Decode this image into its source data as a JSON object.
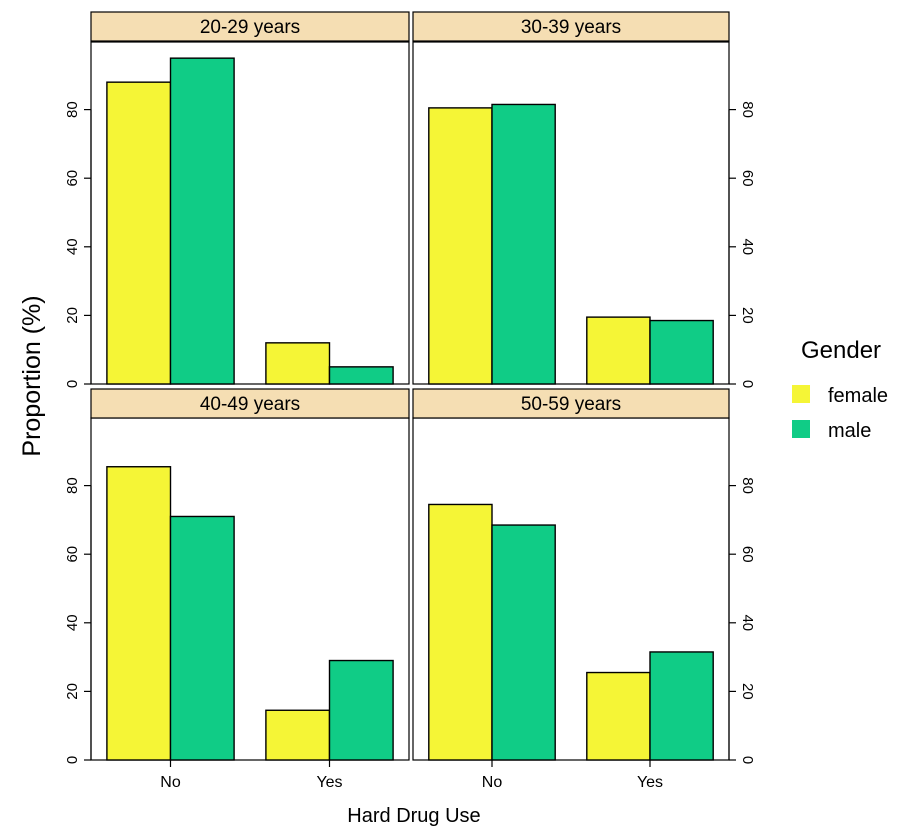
{
  "chart_data": {
    "type": "bar",
    "xlabel": "Hard Drug Use",
    "ylabel": "Proportion (%)",
    "ylim": [
      0,
      100
    ],
    "yticks": [
      0,
      20,
      40,
      60,
      80
    ],
    "categories": [
      "No",
      "Yes"
    ],
    "legend": {
      "title": "Gender",
      "placement": "right",
      "entries": [
        {
          "label": "female",
          "color": "#f5f536"
        },
        {
          "label": "male",
          "color": "#10cc86"
        }
      ]
    },
    "strip_color": "#f5deb3",
    "panels": [
      {
        "title": "20-29 years",
        "series": [
          {
            "name": "female",
            "values": [
              88,
              12
            ]
          },
          {
            "name": "male",
            "values": [
              95,
              5
            ]
          }
        ]
      },
      {
        "title": "30-39 years",
        "series": [
          {
            "name": "female",
            "values": [
              80.5,
              19.5
            ]
          },
          {
            "name": "male",
            "values": [
              81.5,
              18.5
            ]
          }
        ]
      },
      {
        "title": "40-49 years",
        "series": [
          {
            "name": "female",
            "values": [
              85.5,
              14.5
            ]
          },
          {
            "name": "male",
            "values": [
              71,
              29
            ]
          }
        ]
      },
      {
        "title": "50-59 years",
        "series": [
          {
            "name": "female",
            "values": [
              74.5,
              25.5
            ]
          },
          {
            "name": "male",
            "values": [
              68.5,
              31.5
            ]
          }
        ]
      }
    ]
  }
}
